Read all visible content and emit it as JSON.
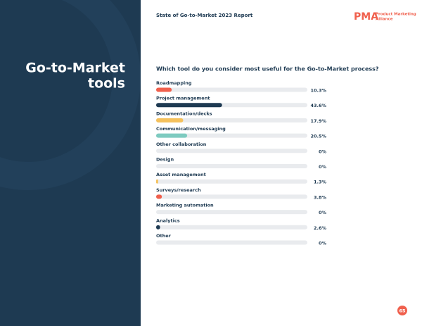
{
  "page": {
    "report_title": "State of Go-to-Market 2023 Report",
    "brand_mark": "PMA",
    "brand_name": [
      "Product Marketing",
      "Alliance"
    ],
    "section_title": [
      "Go-to-Market",
      "tools"
    ],
    "page_number": 65
  },
  "chart_data": {
    "type": "bar",
    "orientation": "horizontal",
    "title": "Which tool do you consider most useful for the Go-to-Market process?",
    "categories": [
      "Roadmapping",
      "Project management",
      "Documentation/decks",
      "Communication/messaging",
      "Other collaboration",
      "Design",
      "Asset management",
      "Surveys/research",
      "Marketing automation",
      "Analytics",
      "Other"
    ],
    "values": [
      10.3,
      43.6,
      17.9,
      20.5,
      0,
      0,
      1.3,
      3.8,
      0,
      2.6,
      0
    ],
    "value_labels": [
      "10.3%",
      "43.6%",
      "17.9%",
      "20.5%",
      "0%",
      "0%",
      "1.3%",
      "3.8%",
      "0%",
      "2.6%",
      "0%"
    ],
    "colors": [
      "#f0604d",
      "#1e3a52",
      "#f5c15c",
      "#7ecbc0",
      "#f0604d",
      "#1e3a52",
      "#f5c15c",
      "#f0604d",
      "#7ecbc0",
      "#1e3a52",
      "#f5c15c"
    ],
    "xlim": [
      0,
      100
    ]
  }
}
